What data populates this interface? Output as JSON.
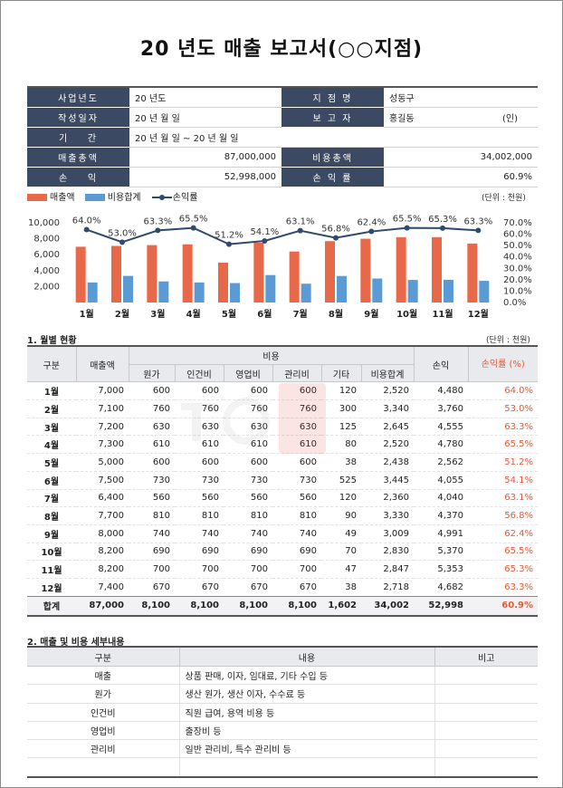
{
  "doc_title": "20  년도 매출 보고서(○○지점)",
  "info": {
    "r1": {
      "k1": "사업년도",
      "v1": "20  년도",
      "k2": "지 점 명",
      "v2": "성동구"
    },
    "r2": {
      "k1": "작성일자",
      "v1": "20  년  월  일",
      "k2": "보 고 자",
      "v2": "홍길동",
      "v2b": "(인)"
    },
    "r3": {
      "k1": "기    간",
      "v1": "20  년  월  일 ~ 20  년  월  일"
    },
    "r4": {
      "k1": "매출총액",
      "v1": "87,000,000",
      "k2": "비용총액",
      "v2": "34,002,000"
    },
    "r5": {
      "k1": "손    익",
      "v1": "52,998,000",
      "k2": "손 익 률",
      "v2": "60.9%"
    }
  },
  "legend": {
    "sales": "매출액",
    "cost": "비용합계",
    "profit_rate": "손익률"
  },
  "unit_label": "(단위 : 천원)",
  "colors": {
    "sales": "#e8694a",
    "cost": "#5b9bd5",
    "rate": "#2e4a6e",
    "header": "#3b4a62",
    "accent": "#e05a3a"
  },
  "chart_data": {
    "type": "bar",
    "categories": [
      "1월",
      "2월",
      "3월",
      "4월",
      "5월",
      "6월",
      "7월",
      "8월",
      "9월",
      "10월",
      "11월",
      "12월"
    ],
    "series": [
      {
        "name": "매출액",
        "values": [
          7000,
          7100,
          7200,
          7300,
          5000,
          7500,
          6400,
          7700,
          8000,
          8200,
          8200,
          7400
        ]
      },
      {
        "name": "비용합계",
        "values": [
          2520,
          3340,
          2645,
          2520,
          2438,
          3445,
          2360,
          3330,
          3009,
          2830,
          2847,
          2718
        ]
      },
      {
        "name": "손익률",
        "type": "line",
        "values": [
          64.0,
          53.0,
          63.3,
          65.5,
          51.2,
          54.1,
          63.1,
          56.8,
          62.4,
          65.5,
          65.3,
          63.3
        ]
      }
    ],
    "rate_labels": [
      "64.0%",
      "53.0%",
      "63.3%",
      "65.5%",
      "51.2%",
      "54.1%",
      "63.1%",
      "56.8%",
      "62.4%",
      "65.5%",
      "65.3%",
      "63.3%"
    ],
    "ylim": [
      0,
      10000
    ],
    "y_ticks": [
      "2,000",
      "4,000",
      "6,000",
      "8,000",
      "10,000"
    ],
    "y2lim": [
      0,
      70
    ],
    "y2_ticks": [
      "0.0%",
      "10.0%",
      "20.0%",
      "30.0%",
      "40.0%",
      "50.0%",
      "60.0%",
      "70.0%"
    ]
  },
  "monthly": {
    "section_title": "1. 월별 현황",
    "unit": "(단위 : 천원)",
    "headers": {
      "gubun": "구분",
      "sales": "매출액",
      "cost": "비용",
      "profit": "손익",
      "rate": "손익률 (%)",
      "sub": [
        "원가",
        "인건비",
        "영업비",
        "관리비",
        "기타",
        "비용합계"
      ]
    },
    "rows": [
      [
        "1월",
        "7,000",
        "600",
        "600",
        "600",
        "600",
        "120",
        "2,520",
        "4,480",
        "64.0%"
      ],
      [
        "2월",
        "7,100",
        "760",
        "760",
        "760",
        "760",
        "300",
        "3,340",
        "3,760",
        "53.0%"
      ],
      [
        "3월",
        "7,200",
        "630",
        "630",
        "630",
        "630",
        "125",
        "2,645",
        "4,555",
        "63.3%"
      ],
      [
        "4월",
        "7,300",
        "610",
        "610",
        "610",
        "610",
        "80",
        "2,520",
        "4,780",
        "65.5%"
      ],
      [
        "5월",
        "5,000",
        "600",
        "600",
        "600",
        "600",
        "38",
        "2,438",
        "2,562",
        "51.2%"
      ],
      [
        "6월",
        "7,500",
        "730",
        "730",
        "730",
        "730",
        "525",
        "3,445",
        "4,055",
        "54.1%"
      ],
      [
        "7월",
        "6,400",
        "560",
        "560",
        "560",
        "560",
        "120",
        "2,360",
        "4,040",
        "63.1%"
      ],
      [
        "8월",
        "7,700",
        "810",
        "810",
        "810",
        "810",
        "90",
        "3,330",
        "4,370",
        "56.8%"
      ],
      [
        "9월",
        "8,000",
        "740",
        "740",
        "740",
        "740",
        "49",
        "3,009",
        "4,991",
        "62.4%"
      ],
      [
        "10월",
        "8,200",
        "690",
        "690",
        "690",
        "690",
        "70",
        "2,830",
        "5,370",
        "65.5%"
      ],
      [
        "11월",
        "8,200",
        "700",
        "700",
        "700",
        "700",
        "47",
        "2,847",
        "5,353",
        "65.3%"
      ],
      [
        "12월",
        "7,400",
        "670",
        "670",
        "670",
        "670",
        "38",
        "2,718",
        "4,682",
        "63.3%"
      ]
    ],
    "total": [
      "합계",
      "87,000",
      "8,100",
      "8,100",
      "8,100",
      "8,100",
      "1,602",
      "34,002",
      "52,998",
      "60.9%"
    ]
  },
  "details": {
    "section_title": "2. 매출 및 비용 세부내용",
    "headers": [
      "구분",
      "내용",
      "비고"
    ],
    "rows": [
      [
        "매출",
        "상품 판매, 이자, 임대료, 기타 수입 등"
      ],
      [
        "원가",
        "생산 원가, 생산 이자, 수수료 등"
      ],
      [
        "인건비",
        "직원 급여, 용역 비용 등"
      ],
      [
        "영업비",
        "출장비 등"
      ],
      [
        "관리비",
        "일반 관리비, 특수 관리비 등"
      ],
      [
        "",
        ""
      ]
    ]
  }
}
